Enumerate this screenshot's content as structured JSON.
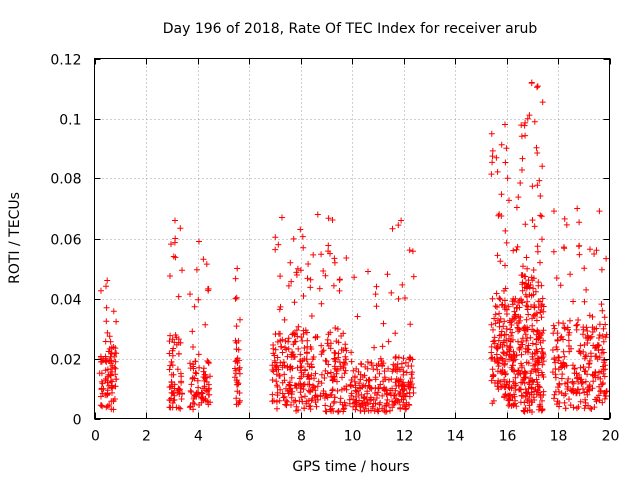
{
  "chart_data": {
    "type": "scatter",
    "title": "Day 196 of 2018, Rate Of TEC Index for receiver arub",
    "xlabel": "GPS time / hours",
    "ylabel": "ROTI / TECUs",
    "xlim": [
      0,
      20
    ],
    "ylim": [
      0,
      0.12
    ],
    "x_ticks": [
      0,
      2,
      4,
      6,
      8,
      10,
      12,
      14,
      16,
      18,
      20
    ],
    "x_tick_labels": [
      "0",
      "2",
      "4",
      "6",
      "8",
      "10",
      "12",
      "14",
      "16",
      "18",
      "20"
    ],
    "y_ticks": [
      0,
      0.02,
      0.04,
      0.06,
      0.08,
      0.1,
      0.12
    ],
    "y_tick_labels": [
      "0",
      "0.02",
      "0.04",
      "0.06",
      "0.08",
      "0.1",
      "0.12"
    ],
    "grid": true,
    "marker": "+",
    "color": "#ff0000",
    "clusters": [
      {
        "x_start": 0.2,
        "x_end": 0.85,
        "y_low": 0.003,
        "y_typical": 0.015,
        "y_max": 0.046,
        "density": 90
      },
      {
        "x_start": 2.9,
        "x_end": 3.4,
        "y_low": 0.003,
        "y_typical": 0.018,
        "y_max": 0.066,
        "density": 70
      },
      {
        "x_start": 3.7,
        "x_end": 4.5,
        "y_low": 0.003,
        "y_typical": 0.012,
        "y_max": 0.059,
        "density": 80
      },
      {
        "x_start": 5.45,
        "x_end": 5.65,
        "y_low": 0.004,
        "y_typical": 0.02,
        "y_max": 0.05,
        "density": 35
      },
      {
        "x_start": 6.9,
        "x_end": 7.75,
        "y_low": 0.003,
        "y_typical": 0.018,
        "y_max": 0.067,
        "density": 110
      },
      {
        "x_start": 7.75,
        "x_end": 9.8,
        "y_low": 0.002,
        "y_typical": 0.018,
        "y_max": 0.068,
        "density": 240
      },
      {
        "x_start": 9.9,
        "x_end": 11.5,
        "y_low": 0.002,
        "y_typical": 0.012,
        "y_max": 0.049,
        "density": 150
      },
      {
        "x_start": 11.5,
        "x_end": 12.4,
        "y_low": 0.003,
        "y_typical": 0.013,
        "y_max": 0.066,
        "density": 110
      },
      {
        "x_start": 15.4,
        "x_end": 16.6,
        "y_low": 0.004,
        "y_typical": 0.025,
        "y_max": 0.098,
        "density": 260
      },
      {
        "x_start": 16.6,
        "x_end": 17.45,
        "y_low": 0.002,
        "y_typical": 0.03,
        "y_max": 0.112,
        "density": 240
      },
      {
        "x_start": 17.8,
        "x_end": 19.9,
        "y_low": 0.003,
        "y_typical": 0.02,
        "y_max": 0.07,
        "density": 260
      }
    ]
  }
}
